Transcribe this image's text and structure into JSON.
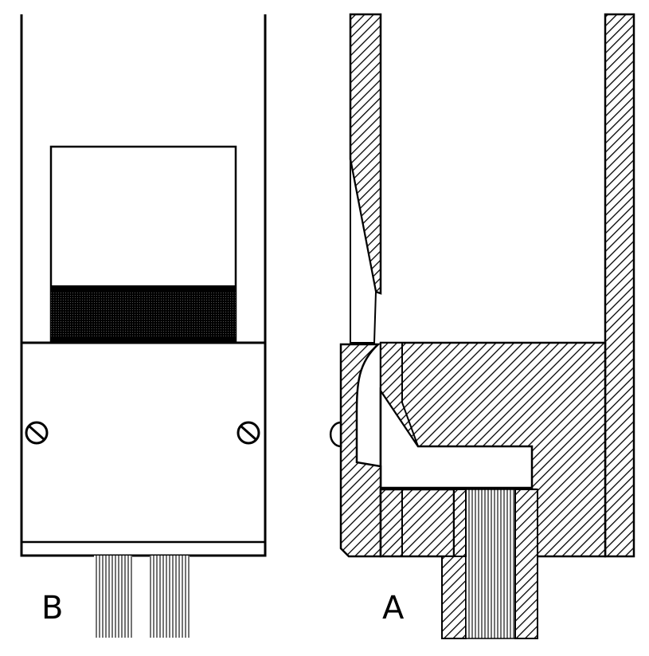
{
  "figure": {
    "labels": {
      "left_view": "B",
      "right_view": "A"
    },
    "colors": {
      "ink": "#000000",
      "paper": "#ffffff"
    }
  }
}
